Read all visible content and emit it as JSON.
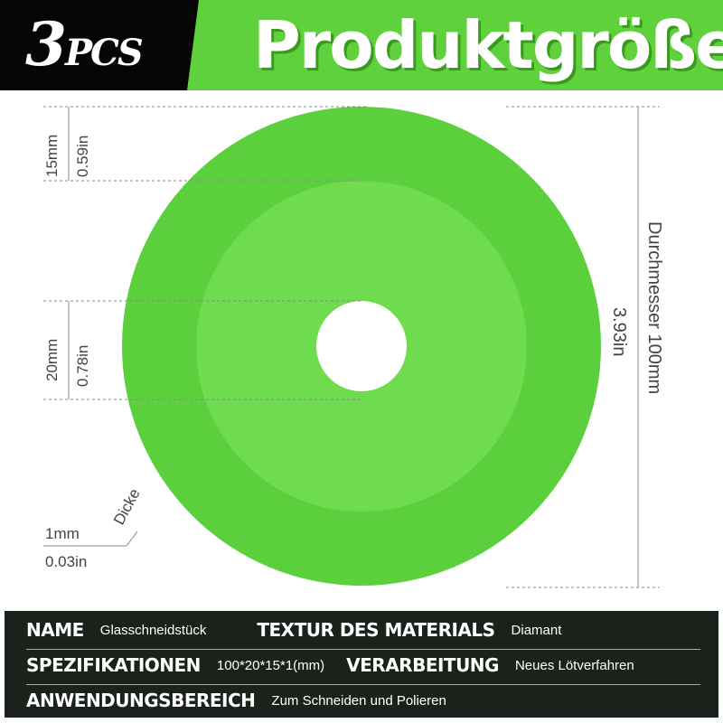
{
  "header": {
    "count_big": "3",
    "count_small": "PCS",
    "title": "Produktgröße"
  },
  "dimensions": {
    "ring_mm": "15mm",
    "ring_in": "0.59in",
    "hole_mm": "20mm",
    "hole_in": "0.78in",
    "diameter_label": "Durchmesser 100mm",
    "diameter_in": "3.93in",
    "thickness_label": "Dicke",
    "thickness_mm": "1mm",
    "thickness_in": "0.03in"
  },
  "colors": {
    "header_green": "#5fd13c",
    "disc_outer": "#5ccf3c",
    "disc_inner": "#6fdc4e",
    "panel": "#1b221c"
  },
  "specs": [
    {
      "k1": "NAME",
      "v1": "Glasschneidstück",
      "k2": "TEXTUR DES MATERIALS",
      "v2": "Diamant"
    },
    {
      "k1": "SPEZIFIKATIONEN",
      "v1": "100*20*15*1(mm)",
      "k2": "VERARBEITUNG",
      "v2": "Neues Lötverfahren"
    },
    {
      "k1": "ANWENDUNGSBEREICH",
      "v1": "Zum Schneiden und Polieren"
    }
  ]
}
